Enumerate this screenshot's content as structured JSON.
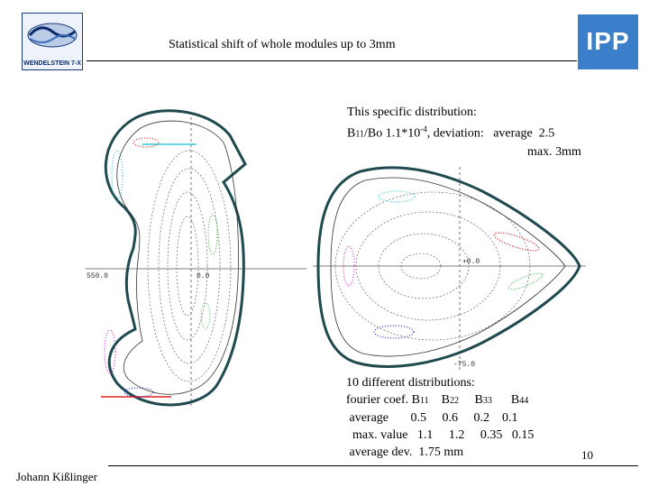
{
  "logos": {
    "w7x_label": "WENDELSTEIN 7-X",
    "ipp_label": "IPP"
  },
  "title": "Statistical shift of whole modules up to 3mm",
  "description": {
    "line1": "This specific distribution:",
    "line2_prefix": "B",
    "line2_sub1": "11",
    "line2_mid": "/Bo 1.1*10",
    "line2_sup": "-4",
    "line2_suffix": ", deviation:   average  2.5",
    "line3": "max. 3mm"
  },
  "stats": {
    "heading": "10 different distributions:",
    "coef_prefix": "fourier coef. B",
    "coef_b11": "11",
    "coef_b22_pre": "    B",
    "coef_b22": "22",
    "coef_b33_pre": "     B",
    "coef_b33": "33",
    "coef_b44_pre": "      B",
    "coef_b44": "44",
    "average_row": " average       0.5     0.6     0.2    0.1",
    "max_row": "  max. value   1.1     1.2     0.35   0.15",
    "avg_dev_row": " average dev.  1.75 mm"
  },
  "plot_labels": {
    "left_r": "550.0",
    "left_center": "0.0",
    "right_top": "+0.0",
    "right_z": "-75.0"
  },
  "page_number": "10",
  "author": "Johann Kißlinger"
}
